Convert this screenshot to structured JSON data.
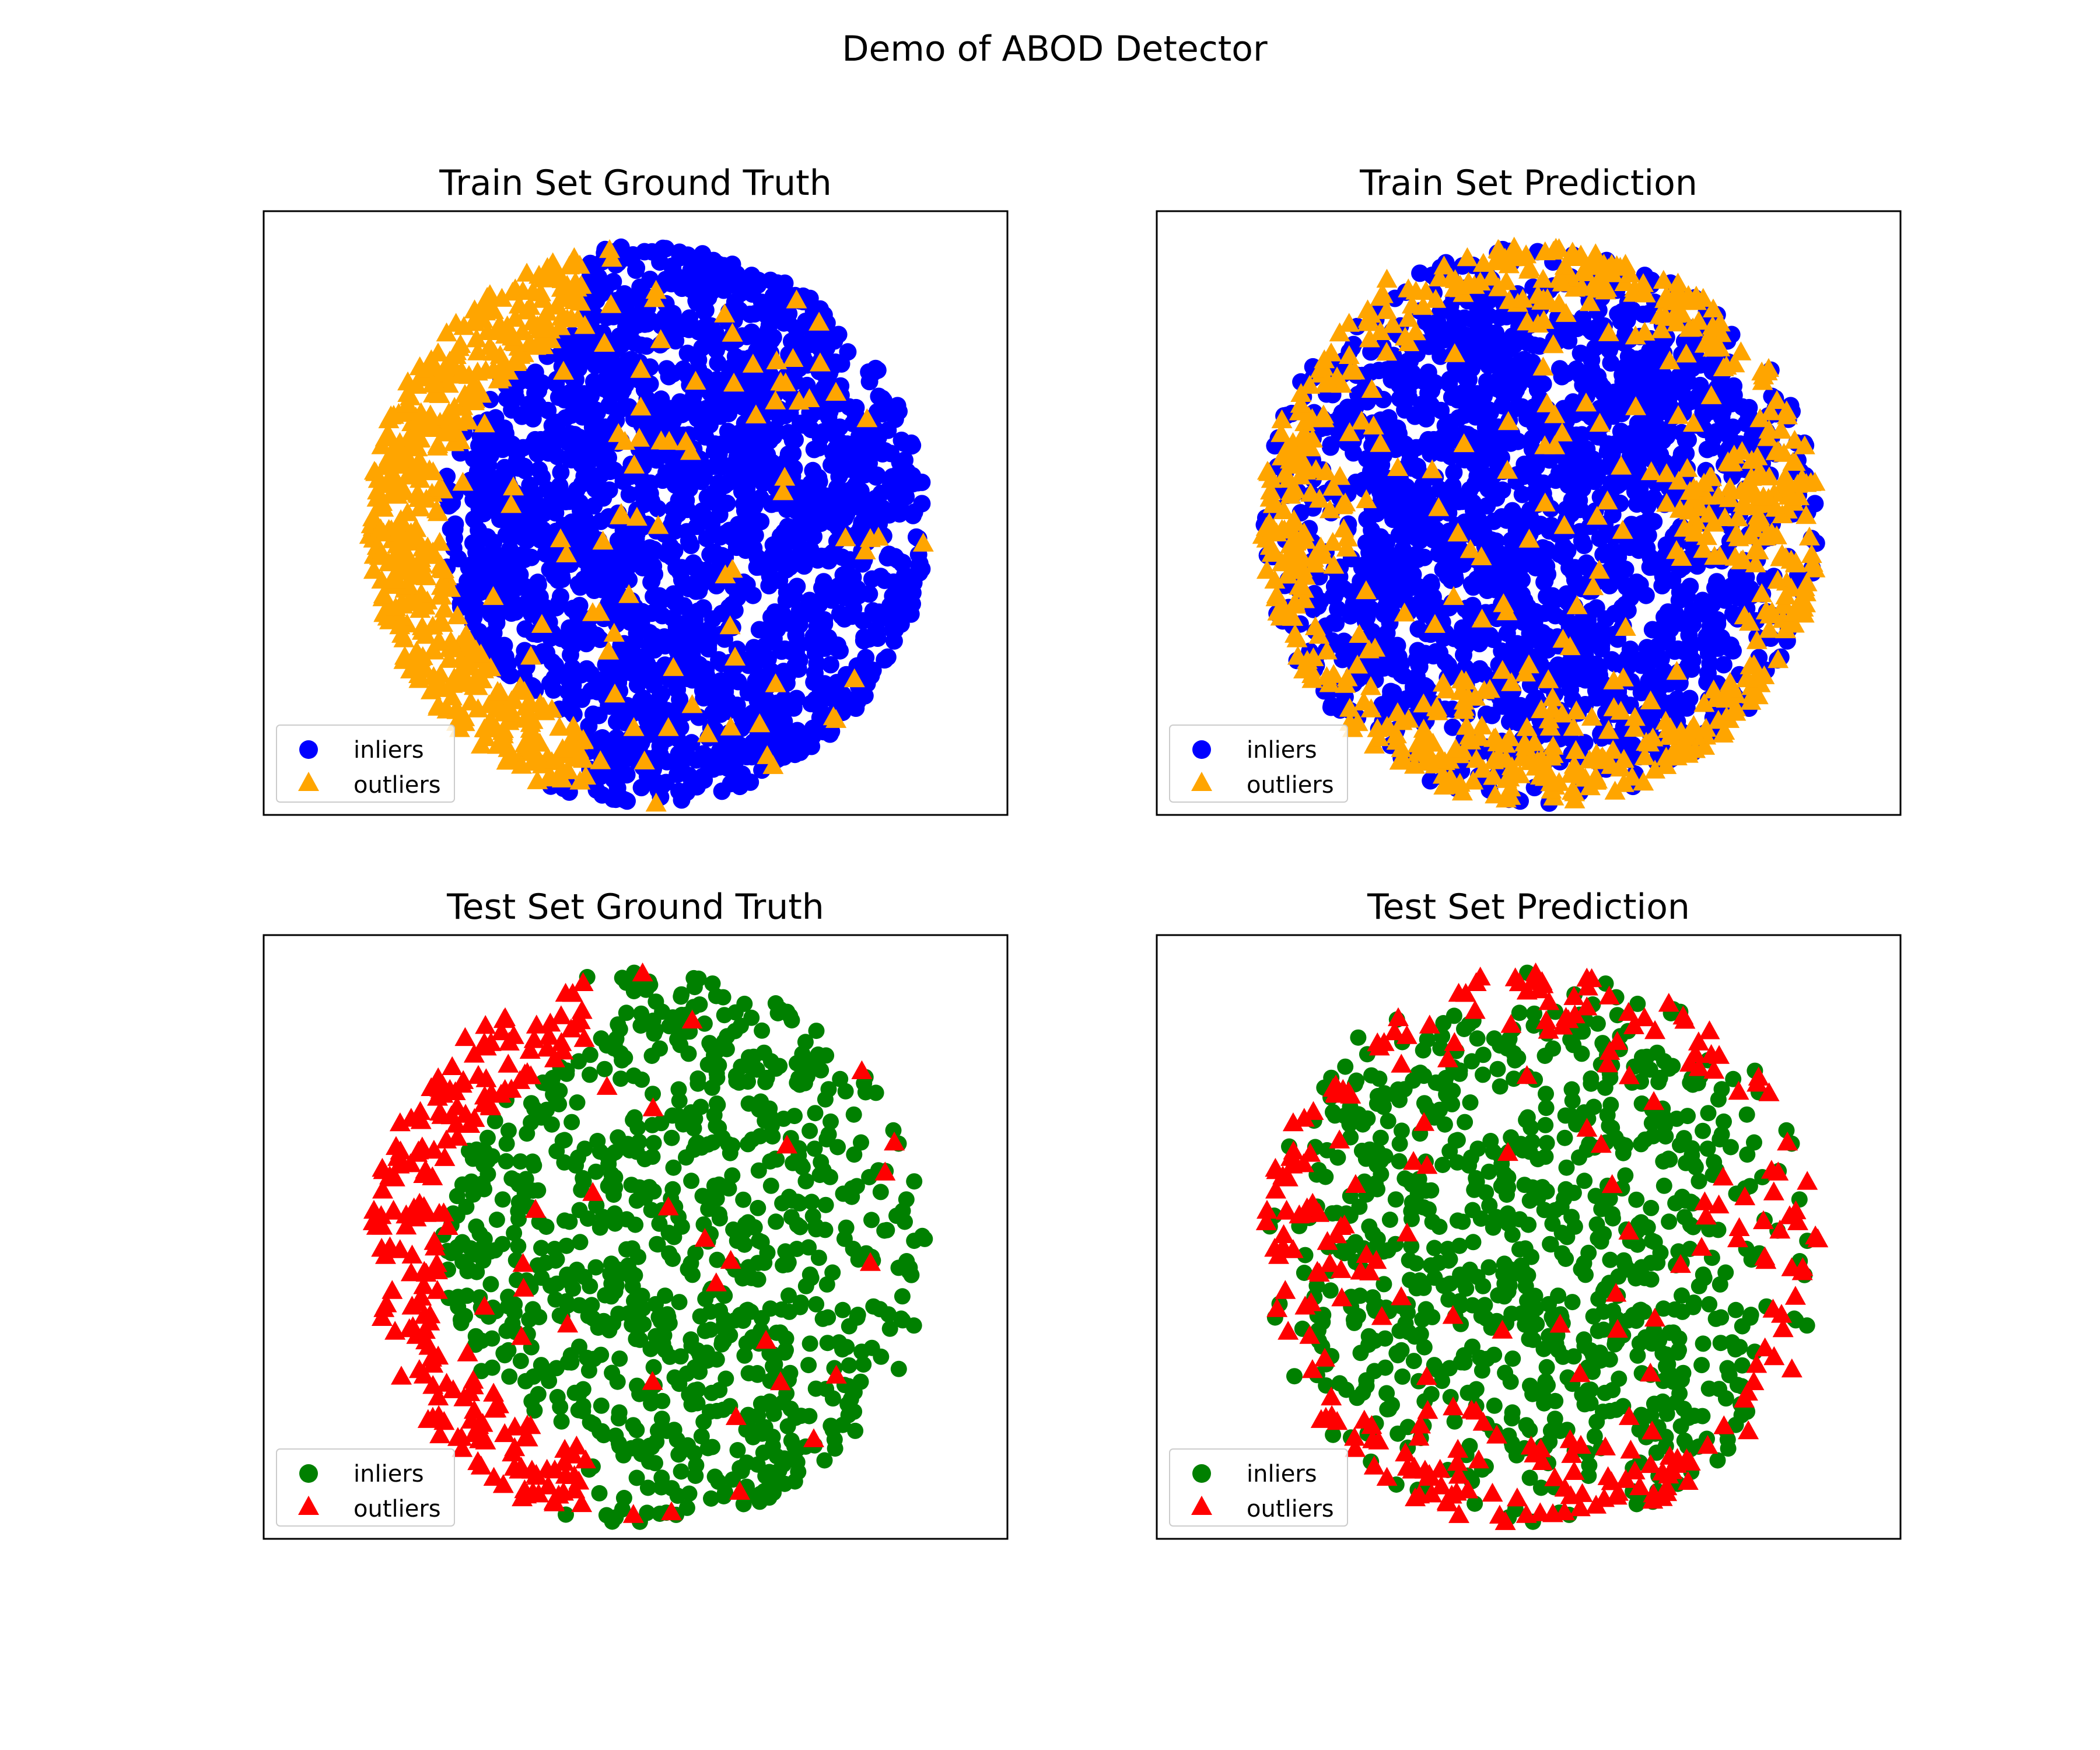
{
  "figure": {
    "suptitle": "Demo of ABOD Detector"
  },
  "chart_data": [
    {
      "type": "scatter",
      "title": "Train Set Ground Truth",
      "xlabel": "",
      "ylabel": "",
      "ticks_visible": false,
      "grid": false,
      "legend_placement": "lower-left",
      "n_points": 2600,
      "series": [
        {
          "name": "inliers",
          "marker": "circle",
          "color": "#0000ff",
          "points": [
            [
              0.18,
              0.38
            ],
            [
              0.25,
              0.52
            ],
            [
              0.05,
              0.45
            ],
            [
              0.1,
              0.15
            ],
            [
              0.32,
              0.6
            ],
            [
              0.4,
              0.28
            ],
            [
              0.15,
              0.7
            ],
            [
              0.35,
              0.05
            ],
            [
              0.22,
              0.85
            ],
            [
              0.45,
              0.45
            ]
          ]
        },
        {
          "name": "outliers",
          "marker": "triangle",
          "color": "#ffa500",
          "points": [
            [
              -0.95,
              0.08
            ],
            [
              -0.82,
              0.35
            ],
            [
              -0.58,
              0.8
            ],
            [
              -0.84,
              -0.28
            ],
            [
              -0.62,
              -0.58
            ],
            [
              -0.3,
              0.55
            ],
            [
              0.05,
              0.3
            ],
            [
              0.28,
              -0.18
            ],
            [
              0.62,
              0.58
            ],
            [
              0.8,
              -0.05
            ]
          ]
        }
      ]
    },
    {
      "type": "scatter",
      "title": "Train Set Prediction",
      "xlabel": "",
      "ylabel": "",
      "ticks_visible": false,
      "grid": false,
      "legend_placement": "lower-left",
      "n_points": 2600,
      "series": [
        {
          "name": "inliers",
          "marker": "circle",
          "color": "#0000ff",
          "points": [
            [
              0.12,
              0.2
            ],
            [
              0.28,
              -0.1
            ],
            [
              -0.1,
              0.05
            ],
            [
              0.4,
              0.45
            ],
            [
              -0.35,
              0.3
            ],
            [
              0.2,
              -0.5
            ],
            [
              -0.6,
              -0.1
            ],
            [
              0.55,
              0.05
            ]
          ]
        },
        {
          "name": "outliers",
          "marker": "triangle",
          "color": "#ffa500",
          "points": [
            [
              -0.92,
              0.05
            ],
            [
              -0.68,
              0.55
            ],
            [
              -0.55,
              0.88
            ],
            [
              0.8,
              0.1
            ],
            [
              0.75,
              -0.35
            ],
            [
              -0.4,
              -0.82
            ],
            [
              0.2,
              -0.92
            ],
            [
              0.55,
              -0.72
            ]
          ]
        }
      ]
    },
    {
      "type": "scatter",
      "title": "Test Set Ground Truth",
      "xlabel": "",
      "ylabel": "",
      "ticks_visible": false,
      "grid": false,
      "legend_placement": "lower-left",
      "n_points": 1100,
      "series": [
        {
          "name": "inliers",
          "marker": "circle",
          "color": "#008000",
          "points": [
            [
              0.18,
              0.38
            ],
            [
              0.25,
              0.52
            ],
            [
              0.05,
              0.45
            ],
            [
              0.1,
              0.15
            ],
            [
              0.32,
              0.6
            ],
            [
              0.4,
              0.28
            ]
          ]
        },
        {
          "name": "outliers",
          "marker": "triangle",
          "color": "#ff0000",
          "points": [
            [
              -0.95,
              0.08
            ],
            [
              -0.82,
              0.35
            ],
            [
              -0.58,
              0.8
            ],
            [
              -0.84,
              -0.28
            ],
            [
              -0.62,
              -0.58
            ],
            [
              0.8,
              -0.05
            ]
          ]
        }
      ]
    },
    {
      "type": "scatter",
      "title": "Test Set Prediction",
      "xlabel": "",
      "ylabel": "",
      "ticks_visible": false,
      "grid": false,
      "legend_placement": "lower-left",
      "n_points": 1100,
      "series": [
        {
          "name": "inliers",
          "marker": "circle",
          "color": "#008000",
          "points": [
            [
              0.12,
              0.2
            ],
            [
              0.28,
              -0.1
            ],
            [
              -0.1,
              0.05
            ],
            [
              0.4,
              0.45
            ],
            [
              -0.35,
              0.3
            ]
          ]
        },
        {
          "name": "outliers",
          "marker": "triangle",
          "color": "#ff0000",
          "points": [
            [
              -0.92,
              0.05
            ],
            [
              -0.68,
              0.55
            ],
            [
              0.8,
              0.1
            ],
            [
              -0.4,
              -0.82
            ],
            [
              0.2,
              -0.92
            ]
          ]
        }
      ]
    }
  ]
}
